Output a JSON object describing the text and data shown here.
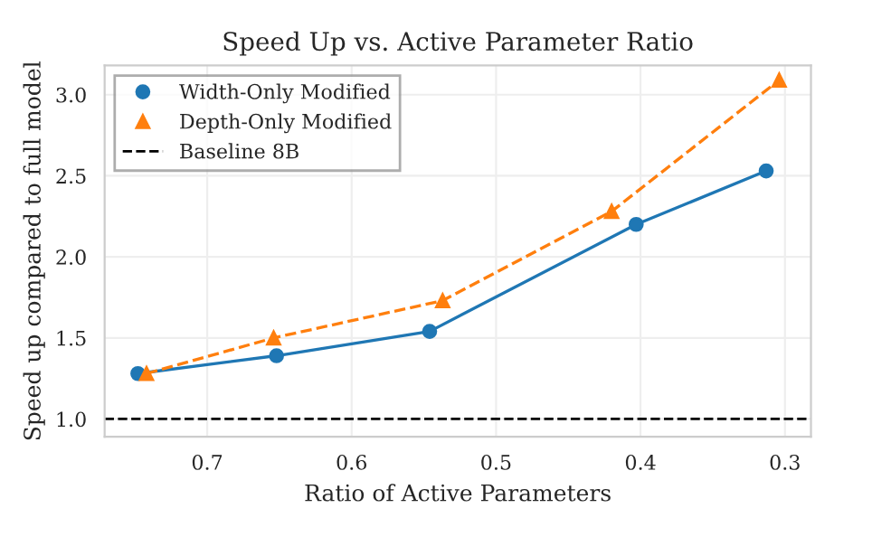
{
  "chart_data": {
    "type": "line",
    "title": "Speed Up vs. Active Parameter Ratio",
    "xlabel": "Ratio of Active Parameters",
    "ylabel": "Speed up compared to full model",
    "series": [
      {
        "name": "Width-Only Modified",
        "color": "#1f77b4",
        "marker": "circle",
        "line_style": "solid",
        "x": [
          0.748,
          0.652,
          0.546,
          0.403,
          0.313
        ],
        "values": [
          1.28,
          1.39,
          1.54,
          2.2,
          2.53
        ]
      },
      {
        "name": "Depth-Only Modified",
        "color": "#ff7f0e",
        "marker": "triangle",
        "line_style": "dashed",
        "x": [
          0.742,
          0.654,
          0.537,
          0.42,
          0.304
        ],
        "values": [
          1.28,
          1.5,
          1.73,
          2.28,
          3.09
        ]
      }
    ],
    "ref_lines": [
      {
        "axis": "y",
        "value": 1.0,
        "label": "Baseline 8B",
        "color": "#000000",
        "line_style": "dashed"
      }
    ],
    "xlim": [
      0.771,
      0.282
    ],
    "ylim": [
      0.89,
      3.18
    ],
    "xticks": [
      0.7,
      0.6,
      0.5,
      0.4,
      0.3
    ],
    "yticks": [
      {
        "value": 1,
        "label": "1.0"
      },
      1.5,
      {
        "value": 2,
        "label": "2.0"
      },
      2.5,
      {
        "value": 3,
        "label": "3.0"
      }
    ],
    "grid": true,
    "legend": "top left"
  }
}
